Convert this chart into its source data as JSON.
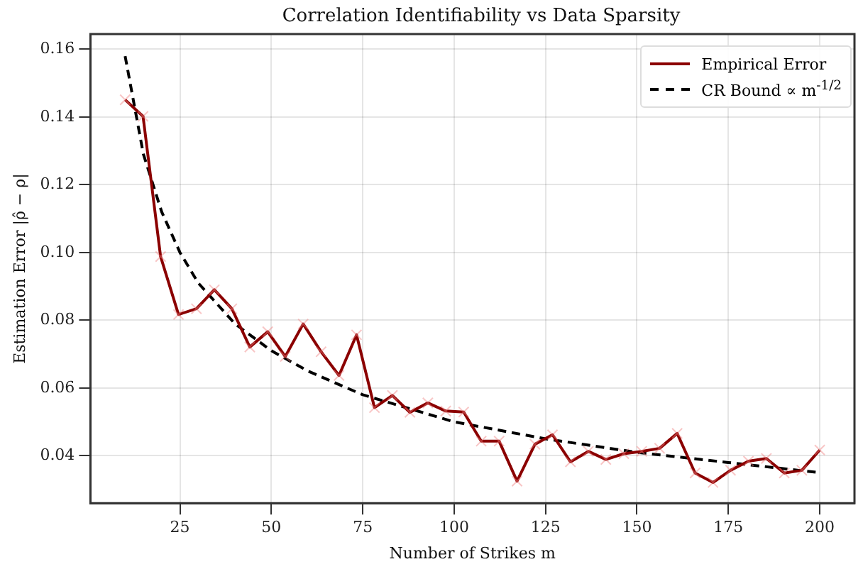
{
  "chart_data": {
    "type": "line",
    "title": "Correlation Identifiability vs Data Sparsity",
    "xlabel": "Number of Strikes m",
    "ylabel": "Estimation Error |ρ̂ − ρ|",
    "xlim": [
      0.5,
      209.5
    ],
    "xticks": [
      25,
      50,
      75,
      100,
      125,
      150,
      175,
      200
    ],
    "ylim": [
      0.026,
      0.1645
    ],
    "yticks": [
      0.04,
      0.06,
      0.08,
      {
        "value": 0.1,
        "label": "0.10"
      },
      0.12,
      0.14,
      0.16
    ],
    "grid": true,
    "legend": "top right",
    "series": [
      {
        "name": "Empirical Error",
        "color": "#8b0000",
        "marker": "cross",
        "line_style": "solid",
        "x": [
          10,
          14.9,
          19.7,
          24.6,
          29.5,
          34.4,
          39.2,
          44.1,
          49,
          53.8,
          58.7,
          63.6,
          68.5,
          73.3,
          78.2,
          83.1,
          87.9,
          92.8,
          97.7,
          102.6,
          107.4,
          112.3,
          117.2,
          122.1,
          126.9,
          131.8,
          136.7,
          141.5,
          146.4,
          151.3,
          156.2,
          161,
          165.9,
          170.8,
          175.6,
          180.5,
          185.4,
          190.3,
          195.1,
          200
        ],
        "values": [
          0.1451,
          0.1402,
          0.0988,
          0.0817,
          0.0834,
          0.089,
          0.0834,
          0.0721,
          0.0766,
          0.0693,
          0.0789,
          0.0707,
          0.0637,
          0.0757,
          0.0542,
          0.0578,
          0.0528,
          0.0556,
          0.0532,
          0.0529,
          0.0443,
          0.0443,
          0.0325,
          0.0434,
          0.0462,
          0.0382,
          0.0413,
          0.0389,
          0.0406,
          0.0413,
          0.0422,
          0.0466,
          0.0349,
          0.0321,
          0.0357,
          0.0384,
          0.0392,
          0.0349,
          0.0357,
          0.0417
        ]
      },
      {
        "name": "CR Bound ∝ m$^{-1/2}$",
        "color": "#000000",
        "marker": "none",
        "line_style": "dashed",
        "x": [
          10,
          15,
          20,
          25,
          30,
          40,
          50,
          60,
          75,
          100,
          125,
          150,
          175,
          200
        ],
        "values": [
          0.158,
          0.129,
          0.112,
          0.1,
          0.091,
          0.079,
          0.071,
          0.065,
          0.058,
          0.05,
          0.045,
          0.041,
          0.038,
          0.035
        ]
      }
    ]
  }
}
